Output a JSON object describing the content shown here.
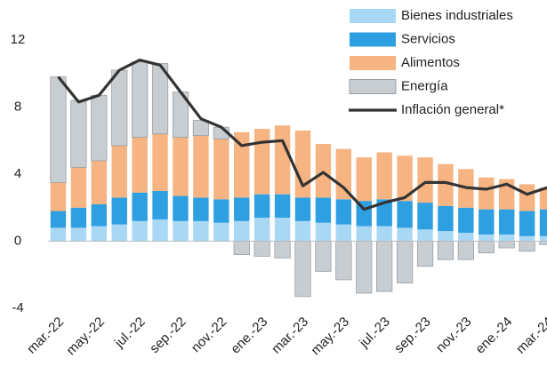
{
  "chart_data": {
    "type": "bar",
    "stacked": true,
    "categories": [
      "mar.-22",
      null,
      "may.-22",
      null,
      "jul.-22",
      null,
      "sep.-22",
      null,
      "nov.-22",
      null,
      "ene.-23",
      null,
      "mar.-23",
      null,
      "may.-23",
      null,
      "jul.-23",
      null,
      "sep.-23",
      null,
      "nov.-23",
      null,
      "ene.-24",
      null,
      "mar.-24"
    ],
    "series": [
      {
        "name": "Bienes industriales",
        "color": "#a9d8f5",
        "values": [
          0.8,
          0.8,
          0.9,
          1.0,
          1.2,
          1.3,
          1.2,
          1.2,
          1.1,
          1.2,
          1.4,
          1.4,
          1.2,
          1.1,
          1.0,
          0.9,
          0.9,
          0.8,
          0.7,
          0.6,
          0.5,
          0.4,
          0.4,
          0.3,
          0.3
        ]
      },
      {
        "name": "Servicios",
        "color": "#2e9fe0",
        "values": [
          1.0,
          1.2,
          1.3,
          1.6,
          1.7,
          1.7,
          1.5,
          1.4,
          1.4,
          1.4,
          1.4,
          1.4,
          1.4,
          1.5,
          1.5,
          1.5,
          1.6,
          1.6,
          1.6,
          1.5,
          1.5,
          1.5,
          1.5,
          1.5,
          1.6
        ]
      },
      {
        "name": "Alimentos",
        "color": "#f5b482",
        "values": [
          1.7,
          2.4,
          2.6,
          3.1,
          3.3,
          3.4,
          3.5,
          3.7,
          3.6,
          3.9,
          3.9,
          4.1,
          4.0,
          3.2,
          3.0,
          2.6,
          2.8,
          2.7,
          2.7,
          2.5,
          2.3,
          1.9,
          1.8,
          1.6,
          1.3
        ]
      },
      {
        "name": "Energía",
        "color": "#c8cdd1",
        "values": [
          6.3,
          4.0,
          3.9,
          4.5,
          4.5,
          4.2,
          2.7,
          0.9,
          0.7,
          -0.8,
          -0.9,
          -1.0,
          -3.3,
          -1.8,
          -2.3,
          -3.1,
          -3.0,
          -2.5,
          -1.5,
          -1.1,
          -1.1,
          -0.7,
          -0.4,
          -0.6,
          -0.2
        ]
      },
      {
        "name": "Inflación general*",
        "color": "#333333",
        "type": "line",
        "values": [
          9.8,
          8.3,
          8.7,
          10.2,
          10.8,
          10.5,
          8.9,
          7.3,
          6.8,
          5.7,
          5.9,
          6.0,
          3.3,
          4.1,
          3.2,
          1.9,
          2.3,
          2.6,
          3.5,
          3.5,
          3.2,
          3.1,
          3.4,
          2.8,
          3.2
        ]
      }
    ],
    "ylim": [
      -4,
      12
    ],
    "yticks": [
      -4,
      0,
      4,
      8,
      12
    ],
    "grid": false
  }
}
